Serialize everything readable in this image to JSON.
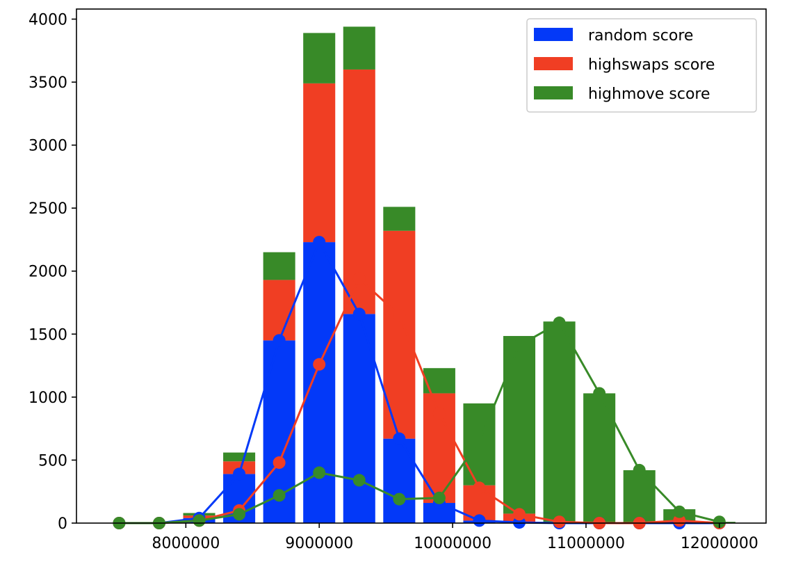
{
  "chart_data": {
    "type": "bar",
    "stacked": true,
    "title": "",
    "xlabel": "",
    "ylabel": "",
    "x": [
      7500000,
      7800000,
      8100000,
      8400000,
      8700000,
      9000000,
      9300000,
      9600000,
      9900000,
      10200000,
      10500000,
      10800000,
      11100000,
      11400000,
      11700000,
      12000000
    ],
    "xlim": [
      7180000,
      12350000
    ],
    "ylim": [
      0,
      4080
    ],
    "xticks": [
      8000000,
      9000000,
      10000000,
      11000000,
      12000000
    ],
    "xtick_labels": [
      "8000000",
      "9000000",
      "10000000",
      "11000000",
      "12000000"
    ],
    "yticks": [
      0,
      500,
      1000,
      1500,
      2000,
      2500,
      3000,
      3500,
      4000
    ],
    "ytick_labels": [
      "0",
      "500",
      "1000",
      "1500",
      "2000",
      "2500",
      "3000",
      "3500",
      "4000"
    ],
    "bar_width_data": 240000,
    "grid": false,
    "legend_position": "top-right",
    "series": [
      {
        "name": "random score",
        "color": "#0339f8",
        "values": [
          0,
          0,
          40,
          390,
          1450,
          2230,
          1660,
          670,
          160,
          20,
          5,
          0,
          0,
          0,
          0,
          0
        ]
      },
      {
        "name": "highswaps score",
        "color": "#f03e23",
        "values": [
          0,
          0,
          20,
          100,
          480,
          1260,
          1940,
          1650,
          870,
          280,
          70,
          10,
          0,
          0,
          20,
          0
        ]
      },
      {
        "name": "highmove score",
        "color": "#388a28",
        "values": [
          0,
          0,
          20,
          70,
          220,
          400,
          340,
          190,
          200,
          650,
          1410,
          1590,
          1030,
          420,
          90,
          10
        ]
      }
    ]
  }
}
